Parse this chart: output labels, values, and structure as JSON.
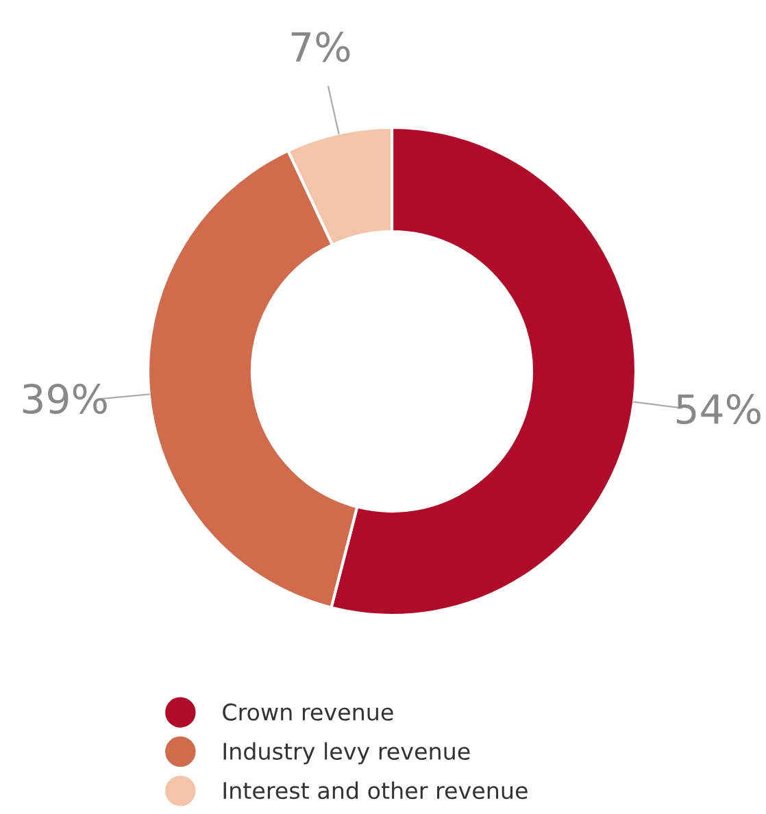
{
  "chart_data": {
    "type": "donut",
    "categories": [
      "Crown revenue",
      "Industry levy revenue",
      "Interest and other revenue"
    ],
    "values": [
      54,
      39,
      7
    ],
    "colors": [
      "#b00b28",
      "#d06b4b",
      "#f3c4a8"
    ],
    "value_labels": [
      "54%",
      "39%",
      "7%"
    ],
    "legend": "bottom"
  }
}
